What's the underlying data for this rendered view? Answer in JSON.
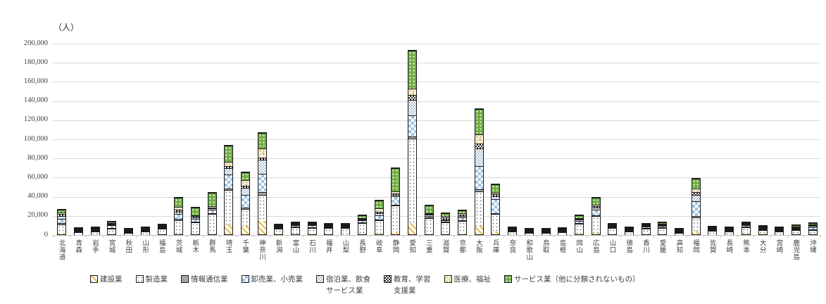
{
  "chart_data": {
    "type": "bar",
    "stacked": true,
    "title": "",
    "ylabel": "（人）",
    "xlabel": "",
    "ylim": [
      0,
      200000
    ],
    "ytick_step": 20000,
    "ytick_labels": [
      "0",
      "20,000",
      "40,000",
      "60,000",
      "80,000",
      "100,000",
      "120,000",
      "140,000",
      "160,000",
      "180,000",
      "200,000"
    ],
    "grid": true,
    "legend_position": "bottom",
    "bar_outline_color": "#1a1a1a",
    "gridline_color": "#D9D9D9",
    "categories": [
      "北海道",
      "青森",
      "岩手",
      "宮城",
      "秋田",
      "山形",
      "福島",
      "茨城",
      "栃木",
      "群馬",
      "埼玉",
      "千葉",
      "神奈川",
      "新潟",
      "富山",
      "石川",
      "福井",
      "山梨",
      "長野",
      "岐阜",
      "静岡",
      "愛知",
      "三重",
      "滋賀",
      "京都",
      "大阪",
      "兵庫",
      "奈良",
      "和歌山",
      "鳥取",
      "島根",
      "岡山",
      "広島",
      "山口",
      "徳島",
      "香川",
      "愛媛",
      "高知",
      "福岡",
      "佐賀",
      "長崎",
      "熊本",
      "大分",
      "宮崎",
      "鹿児島",
      "沖縄"
    ],
    "series": [
      {
        "name": "建設業",
        "legend_label": "建設業",
        "pattern": "construction",
        "color": "#E4C363",
        "values": [
          1500,
          300,
          300,
          800,
          200,
          300,
          600,
          1000,
          800,
          1000,
          10000,
          9000,
          14000,
          700,
          500,
          500,
          400,
          300,
          700,
          1000,
          3000,
          12000,
          700,
          500,
          800,
          9000,
          3000,
          300,
          200,
          150,
          200,
          700,
          1200,
          500,
          200,
          400,
          400,
          150,
          4000,
          300,
          300,
          600,
          400,
          300,
          500,
          600
        ]
      },
      {
        "name": "製造業",
        "legend_label": "製造業",
        "pattern": "manufacturing",
        "color": "#FFFFFF",
        "values": [
          9000,
          2000,
          2800,
          5000,
          1300,
          2700,
          5000,
          14000,
          12000,
          20000,
          36000,
          17500,
          27000,
          5000,
          7000,
          6500,
          6000,
          6000,
          11000,
          14000,
          27000,
          88000,
          16000,
          12000,
          13000,
          36000,
          18000,
          3000,
          1500,
          1200,
          1700,
          10000,
          18000,
          6000,
          2800,
          5500,
          6500,
          1300,
          14000,
          3200,
          3000,
          6500,
          3800,
          2400,
          4000,
          4000
        ]
      },
      {
        "name": "情報通信業",
        "legend_label": "情報通信業",
        "pattern": "info",
        "color": "#A5A5A5",
        "values": [
          1500,
          100,
          100,
          1200,
          100,
          100,
          200,
          1000,
          500,
          1000,
          1500,
          1500,
          3000,
          300,
          300,
          300,
          200,
          200,
          500,
          500,
          1000,
          2500,
          300,
          300,
          700,
          2000,
          1000,
          200,
          100,
          50,
          100,
          500,
          800,
          200,
          100,
          300,
          200,
          50,
          1500,
          100,
          100,
          300,
          200,
          100,
          200,
          500
        ]
      },
      {
        "name": "卸売業、小売業",
        "legend_label": "卸売業、小売業",
        "pattern": "wholesale",
        "color": "#9DC3E6",
        "values": [
          4500,
          500,
          500,
          2500,
          300,
          400,
          1000,
          5000,
          3000,
          3500,
          15000,
          13500,
          19000,
          1200,
          1200,
          1500,
          1000,
          800,
          2000,
          4000,
          8500,
          22000,
          2000,
          1500,
          3000,
          24000,
          15000,
          700,
          300,
          250,
          300,
          2500,
          5500,
          1100,
          500,
          1500,
          1400,
          300,
          15000,
          600,
          600,
          1500,
          800,
          500,
          1000,
          2200
        ]
      },
      {
        "name": "宿泊業、飲食サービス業",
        "legend_label": "宿泊業、飲食\nサービス業",
        "pattern": "accommodation",
        "color": "#AFC3D6",
        "values": [
          3000,
          300,
          300,
          1000,
          100,
          200,
          500,
          2500,
          1500,
          1500,
          7000,
          7000,
          15000,
          500,
          500,
          700,
          500,
          500,
          1200,
          2500,
          2000,
          16000,
          1000,
          800,
          1500,
          19000,
          3000,
          300,
          200,
          150,
          200,
          1500,
          2500,
          500,
          200,
          600,
          500,
          200,
          7000,
          300,
          400,
          800,
          500,
          300,
          600,
          1500
        ]
      },
      {
        "name": "教育、学習支援業",
        "legend_label": "教育、学習\n支援業",
        "pattern": "education",
        "color": "#2b2723",
        "values": [
          1500,
          300,
          300,
          800,
          200,
          300,
          500,
          2000,
          1000,
          1000,
          2000,
          2000,
          2500,
          500,
          500,
          500,
          400,
          400,
          800,
          1500,
          1500,
          5000,
          800,
          2500,
          1500,
          5000,
          2000,
          400,
          100,
          100,
          100,
          800,
          1200,
          400,
          200,
          500,
          400,
          150,
          2500,
          300,
          300,
          600,
          400,
          300,
          500,
          600
        ]
      },
      {
        "name": "医療、福祉",
        "legend_label": "医療、福祉",
        "pattern": "medical",
        "color": "#F9F1D8",
        "values": [
          2000,
          200,
          200,
          700,
          100,
          200,
          400,
          3000,
          1200,
          1500,
          4000,
          6000,
          9500,
          500,
          500,
          500,
          300,
          300,
          800,
          3500,
          2000,
          7000,
          700,
          800,
          1500,
          9500,
          1500,
          200,
          100,
          100,
          100,
          1000,
          1800,
          300,
          100,
          500,
          400,
          100,
          4000,
          200,
          200,
          500,
          300,
          200,
          400,
          600
        ]
      },
      {
        "name": "サービス業（他に分類されないもの）",
        "legend_label": "サービス業（他に分類されないもの）",
        "pattern": "services",
        "color": "#71AD47",
        "values": [
          3000,
          300,
          500,
          1000,
          200,
          300,
          800,
          10000,
          7500,
          14000,
          17000,
          8000,
          16000,
          800,
          1000,
          1000,
          700,
          1300,
          3000,
          8000,
          24000,
          39500,
          8000,
          3100,
          3000,
          26500,
          8500,
          400,
          300,
          200,
          300,
          3000,
          7500,
          800,
          400,
          1000,
          1000,
          250,
          10000,
          500,
          600,
          1200,
          600,
          400,
          800,
          1500
        ]
      }
    ]
  }
}
